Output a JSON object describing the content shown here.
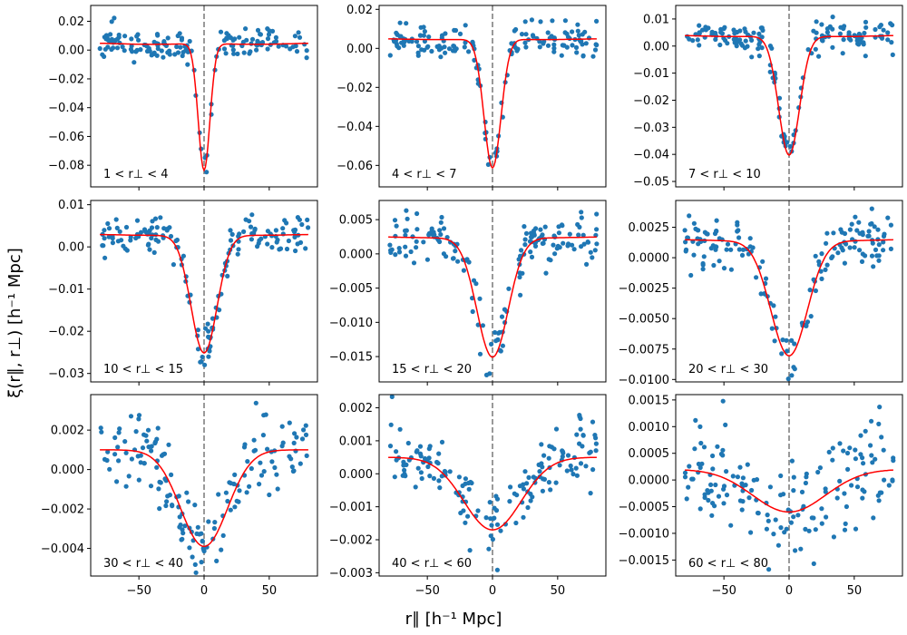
{
  "figure": {
    "xlabel": "r∥ [h⁻¹ Mpc]",
    "ylabel": "ξ(r∥, r⊥) [h⁻¹ Mpc]"
  },
  "colors": {
    "points": "#1f77b4",
    "fit": "#ff0000",
    "zero_line": "#808080"
  },
  "chart_data": [
    {
      "type": "scatter",
      "label": "1 < r⊥ < 4",
      "xlim": [
        -87,
        87
      ],
      "ylim": [
        -0.095,
        0.031
      ],
      "yticks": [
        0.02,
        0.0,
        -0.02,
        -0.04,
        -0.06,
        -0.08
      ],
      "ytick_labels": [
        "0.02",
        "0.00",
        "−0.02",
        "−0.04",
        "−0.06",
        "−0.08"
      ],
      "xticks": [
        -50,
        0,
        50
      ],
      "xtick_labels": [
        "−50",
        "0",
        "50"
      ],
      "model": {
        "baseline": 0.005,
        "amplitude": -0.088,
        "sigma": 4.5,
        "dip": -0.002,
        "dip_center": 40,
        "dip_sigma": 25
      },
      "noise": 0.005,
      "seed": 11
    },
    {
      "type": "scatter",
      "label": "4 < r⊥ < 7",
      "xlim": [
        -87,
        87
      ],
      "ylim": [
        -0.071,
        0.022
      ],
      "yticks": [
        0.02,
        0.0,
        -0.02,
        -0.04,
        -0.06
      ],
      "ytick_labels": [
        "0.02",
        "0.00",
        "−0.02",
        "−0.04",
        "−0.06"
      ],
      "xticks": [
        -50,
        0,
        50
      ],
      "xtick_labels": [
        "−50",
        "0",
        "50"
      ],
      "model": {
        "baseline": 0.005,
        "amplitude": -0.066,
        "sigma": 6.5,
        "dip": -0.001,
        "dip_center": 40,
        "dip_sigma": 25
      },
      "noise": 0.004,
      "seed": 23
    },
    {
      "type": "scatter",
      "label": "7 < r⊥ < 10",
      "xlim": [
        -87,
        87
      ],
      "ylim": [
        -0.052,
        0.015
      ],
      "yticks": [
        0.01,
        0.0,
        -0.01,
        -0.02,
        -0.03,
        -0.04,
        -0.05
      ],
      "ytick_labels": [
        "0.01",
        "0.00",
        "−0.01",
        "−0.02",
        "−0.03",
        "−0.04",
        "−0.05"
      ],
      "xticks": [
        -50,
        0,
        50
      ],
      "xtick_labels": [
        "−50",
        "0",
        "50"
      ],
      "model": {
        "baseline": 0.004,
        "amplitude": -0.044,
        "sigma": 8,
        "dip": -0.001,
        "dip_center": 40,
        "dip_sigma": 25
      },
      "noise": 0.003,
      "seed": 37
    },
    {
      "type": "scatter",
      "label": "10 < r⊥ < 15",
      "xlim": [
        -87,
        87
      ],
      "ylim": [
        -0.032,
        0.011
      ],
      "yticks": [
        0.01,
        0.0,
        -0.01,
        -0.02,
        -0.03
      ],
      "ytick_labels": [
        "0.01",
        "0.00",
        "−0.01",
        "−0.02",
        "−0.03"
      ],
      "xticks": [
        -50,
        0,
        50
      ],
      "xtick_labels": [
        "−50",
        "0",
        "50"
      ],
      "model": {
        "baseline": 0.003,
        "amplitude": -0.028,
        "sigma": 10,
        "dip": -0.0005,
        "dip_center": 40,
        "dip_sigma": 25
      },
      "noise": 0.0022,
      "seed": 41
    },
    {
      "type": "scatter",
      "label": "15 < r⊥ < 20",
      "xlim": [
        -87,
        87
      ],
      "ylim": [
        -0.0187,
        0.0078
      ],
      "yticks": [
        0.005,
        0.0,
        -0.005,
        -0.01,
        -0.015
      ],
      "ytick_labels": [
        "0.005",
        "0.000",
        "−0.005",
        "−0.010",
        "−0.015"
      ],
      "xticks": [
        -50,
        0,
        50
      ],
      "xtick_labels": [
        "−50",
        "0",
        "50"
      ],
      "model": {
        "baseline": 0.0025,
        "amplitude": -0.0175,
        "sigma": 12,
        "dip": -0.0003,
        "dip_center": 40,
        "dip_sigma": 25
      },
      "noise": 0.0018,
      "seed": 53
    },
    {
      "type": "scatter",
      "label": "20 < r⊥ < 30",
      "xlim": [
        -87,
        87
      ],
      "ylim": [
        -0.0102,
        0.0047
      ],
      "yticks": [
        0.0025,
        0.0,
        -0.0025,
        -0.005,
        -0.0075,
        -0.01
      ],
      "ytick_labels": [
        "0.0025",
        "0.0000",
        "−0.0025",
        "−0.0050",
        "−0.0075",
        "−0.0100"
      ],
      "xticks": [
        -50,
        0,
        50
      ],
      "xtick_labels": [
        "−50",
        "0",
        "50"
      ],
      "model": {
        "baseline": 0.0015,
        "amplitude": -0.0095,
        "sigma": 14,
        "dip": -0.0002,
        "dip_center": 40,
        "dip_sigma": 25
      },
      "noise": 0.001,
      "seed": 67
    },
    {
      "type": "scatter",
      "label": "30 < r⊥ < 40",
      "xlim": [
        -87,
        87
      ],
      "ylim": [
        -0.0054,
        0.0038
      ],
      "yticks": [
        0.002,
        0.0,
        -0.002,
        -0.004
      ],
      "ytick_labels": [
        "0.002",
        "0.000",
        "−0.002",
        "−0.004"
      ],
      "xticks": [
        -50,
        0,
        50
      ],
      "xtick_labels": [
        "−50",
        "0",
        "50"
      ],
      "model": {
        "baseline": 0.001,
        "amplitude": -0.0049,
        "sigma": 18,
        "dip": 0.0,
        "dip_center": 40,
        "dip_sigma": 25
      },
      "noise": 0.0009,
      "seed": 79
    },
    {
      "type": "scatter",
      "label": "40 < r⊥ < 60",
      "xlim": [
        -87,
        87
      ],
      "ylim": [
        -0.0031,
        0.0024
      ],
      "yticks": [
        0.002,
        0.001,
        0.0,
        -0.001,
        -0.002,
        -0.003
      ],
      "ytick_labels": [
        "0.002",
        "0.001",
        "0.000",
        "−0.001",
        "−0.002",
        "−0.003"
      ],
      "xticks": [
        -50,
        0,
        50
      ],
      "xtick_labels": [
        "−50",
        "0",
        "50"
      ],
      "model": {
        "baseline": 0.0005,
        "amplitude": -0.0022,
        "sigma": 22,
        "dip": 0.0,
        "dip_center": 40,
        "dip_sigma": 25
      },
      "noise": 0.0006,
      "seed": 97
    },
    {
      "type": "scatter",
      "label": "60 < r⊥ < 80",
      "xlim": [
        -87,
        87
      ],
      "ylim": [
        -0.0018,
        0.0016
      ],
      "yticks": [
        0.0015,
        0.001,
        0.0005,
        0.0,
        -0.0005,
        -0.001,
        -0.0015
      ],
      "ytick_labels": [
        "0.0015",
        "0.0010",
        "0.0005",
        "0.0000",
        "−0.0005",
        "−0.0010",
        "−0.0015"
      ],
      "xticks": [
        -50,
        0,
        50
      ],
      "xtick_labels": [
        "−50",
        "0",
        "50"
      ],
      "model": {
        "baseline": 0.0002,
        "amplitude": -0.0008,
        "sigma": 28,
        "dip": 0.0,
        "dip_center": 40,
        "dip_sigma": 25
      },
      "noise": 0.0005,
      "seed": 113
    }
  ]
}
